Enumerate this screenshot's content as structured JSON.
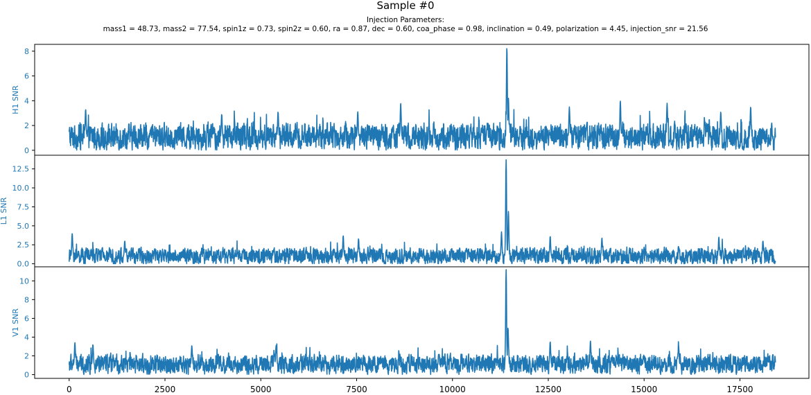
{
  "title": "Sample #0",
  "subtitle_line1": "Injection Parameters:",
  "subtitle_line2": "mass1 = 48.73, mass2 = 77.54, spin1z = 0.73, spin2z = 0.60, ra = 0.87, dec = 0.60, coa_phase = 0.98, inclination = 0.49, polarization = 4.45, injection_snr = 21.56",
  "colors": {
    "line": "#1f77b4",
    "axis_label": "#1f77b4"
  },
  "chart_data": [
    {
      "type": "line",
      "ylabel": "H1 SNR",
      "xlim": [
        -900,
        19300
      ],
      "ylim": [
        -0.4,
        8.55
      ],
      "yticks": [
        0,
        2,
        4,
        6,
        8
      ],
      "yticklabels": [
        "0",
        "2",
        "4",
        "6",
        "8"
      ],
      "x_range": [
        0,
        18431
      ],
      "baseline": 1.1,
      "noise_amp": 0.9,
      "peaks": [
        {
          "x": 430,
          "y": 3.3
        },
        {
          "x": 3980,
          "y": 2.9
        },
        {
          "x": 5450,
          "y": 3.1
        },
        {
          "x": 7530,
          "y": 3.1
        },
        {
          "x": 8650,
          "y": 3.8
        },
        {
          "x": 11420,
          "y": 8.3
        },
        {
          "x": 11460,
          "y": 4.2
        },
        {
          "x": 13050,
          "y": 3.5
        },
        {
          "x": 14380,
          "y": 4.0
        },
        {
          "x": 15600,
          "y": 3.8
        },
        {
          "x": 17000,
          "y": 3.1
        },
        {
          "x": 17780,
          "y": 3.5
        }
      ]
    },
    {
      "type": "line",
      "ylabel": "L1 SNR",
      "xlim": [
        -900,
        19300
      ],
      "ylim": [
        -0.4,
        14.3
      ],
      "yticks": [
        0,
        2.5,
        5,
        7.5,
        10,
        12.5
      ],
      "yticklabels": [
        "0.0",
        "2.5",
        "5.0",
        "7.5",
        "10.0",
        "12.5"
      ],
      "x_range": [
        0,
        18431
      ],
      "baseline": 1.0,
      "noise_amp": 0.9,
      "peaks": [
        {
          "x": 80,
          "y": 4.0
        },
        {
          "x": 1450,
          "y": 3.0
        },
        {
          "x": 7150,
          "y": 3.7
        },
        {
          "x": 7550,
          "y": 3.3
        },
        {
          "x": 11280,
          "y": 4.2
        },
        {
          "x": 11400,
          "y": 13.7
        },
        {
          "x": 11460,
          "y": 6.9
        },
        {
          "x": 12550,
          "y": 3.6
        },
        {
          "x": 13900,
          "y": 3.4
        },
        {
          "x": 16950,
          "y": 3.5
        },
        {
          "x": 18100,
          "y": 3.0
        }
      ]
    },
    {
      "type": "line",
      "ylabel": "V1 SNR",
      "xlim": [
        -900,
        19300
      ],
      "ylim": [
        -0.4,
        11.5
      ],
      "yticks": [
        0,
        2,
        4,
        6,
        8,
        10
      ],
      "yticklabels": [
        "0",
        "2",
        "4",
        "6",
        "8",
        "10"
      ],
      "x_range": [
        0,
        18431
      ],
      "baseline": 1.1,
      "noise_amp": 0.85,
      "peaks": [
        {
          "x": 150,
          "y": 3.4
        },
        {
          "x": 620,
          "y": 3.2
        },
        {
          "x": 3200,
          "y": 3.1
        },
        {
          "x": 5400,
          "y": 3.1
        },
        {
          "x": 11400,
          "y": 11.2
        },
        {
          "x": 11450,
          "y": 5.0
        },
        {
          "x": 12550,
          "y": 3.5
        },
        {
          "x": 13600,
          "y": 3.6
        },
        {
          "x": 15900,
          "y": 3.1
        }
      ]
    }
  ],
  "xticks": [
    0,
    2500,
    5000,
    7500,
    10000,
    12500,
    15000,
    17500
  ],
  "xticklabels": [
    "0",
    "2500",
    "5000",
    "7500",
    "10000",
    "12500",
    "15000",
    "17500"
  ]
}
